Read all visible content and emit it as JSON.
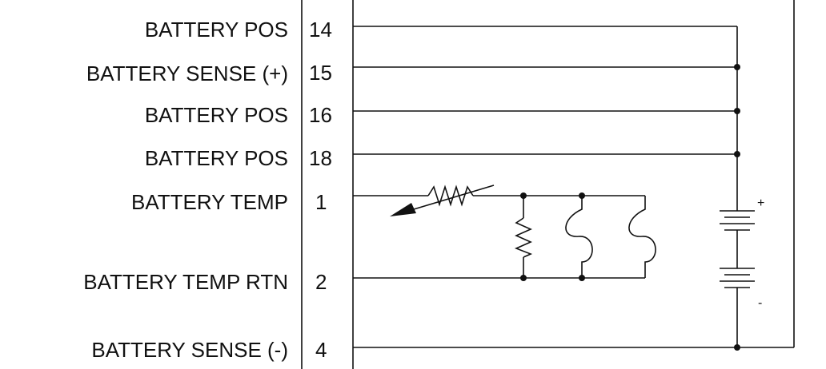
{
  "connector": {
    "pins": [
      {
        "label": "BATTERY POS",
        "pin": "14"
      },
      {
        "label": "BATTERY SENSE (+)",
        "pin": "15"
      },
      {
        "label": "BATTERY POS",
        "pin": "16"
      },
      {
        "label": "BATTERY POS",
        "pin": "18"
      },
      {
        "label": "BATTERY TEMP",
        "pin": "1"
      },
      {
        "label": "BATTERY TEMP RTN",
        "pin": "2"
      },
      {
        "label": "BATTERY SENSE (-)",
        "pin": "4"
      }
    ]
  },
  "battery": {
    "plus": "+",
    "minus": "-"
  },
  "colors": {
    "ink": "#111111",
    "background": "#ffffff"
  }
}
